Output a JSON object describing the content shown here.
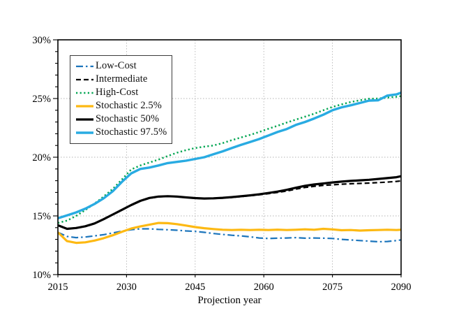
{
  "figure": {
    "background": "#ffffff",
    "frame_color": "#000000"
  },
  "chart_data": {
    "type": "line",
    "title": "",
    "xlabel": "Projection year",
    "ylabel": "",
    "xlim": [
      2015,
      2090
    ],
    "ylim": [
      10,
      30
    ],
    "x_ticks": [
      2015,
      2030,
      2045,
      2060,
      2075,
      2090
    ],
    "y_ticks": [
      {
        "value": 10,
        "label": "10%"
      },
      {
        "value": 15,
        "label": "15%"
      },
      {
        "value": 20,
        "label": "20%"
      },
      {
        "value": 25,
        "label": "25%"
      },
      {
        "value": 30,
        "label": "30%"
      }
    ],
    "y_minor_tick_step": 1,
    "grid": true,
    "grid_color": "#b3b3b3",
    "legend": {
      "position": "upper-left",
      "border_color": "#3c3c3c",
      "background": "#ffffff"
    },
    "x": [
      2015,
      2017,
      2019,
      2021,
      2023,
      2025,
      2027,
      2029,
      2031,
      2033,
      2035,
      2037,
      2039,
      2041,
      2043,
      2045,
      2047,
      2049,
      2051,
      2053,
      2055,
      2057,
      2059,
      2061,
      2063,
      2065,
      2067,
      2069,
      2071,
      2073,
      2075,
      2077,
      2079,
      2081,
      2083,
      2085,
      2087,
      2089,
      2090
    ],
    "series": [
      {
        "name": "Low-Cost",
        "color": "#1c75bc",
        "style": "dashdot",
        "width": 2.2,
        "values": [
          13.6,
          13.25,
          13.15,
          13.2,
          13.3,
          13.4,
          13.55,
          13.7,
          13.82,
          13.9,
          13.9,
          13.85,
          13.82,
          13.78,
          13.72,
          13.68,
          13.6,
          13.5,
          13.42,
          13.35,
          13.3,
          13.22,
          13.12,
          13.08,
          13.1,
          13.12,
          13.15,
          13.1,
          13.12,
          13.1,
          13.08,
          13.0,
          12.95,
          12.9,
          12.85,
          12.8,
          12.82,
          12.9,
          12.95
        ]
      },
      {
        "name": "Intermediate",
        "color": "#000000",
        "style": "dashed",
        "width": 2.2,
        "values": [
          14.2,
          13.92,
          13.98,
          14.12,
          14.35,
          14.7,
          15.1,
          15.5,
          15.9,
          16.25,
          16.5,
          16.62,
          16.66,
          16.63,
          16.57,
          16.5,
          16.47,
          16.48,
          16.52,
          16.57,
          16.64,
          16.72,
          16.8,
          16.9,
          17.0,
          17.12,
          17.28,
          17.42,
          17.52,
          17.6,
          17.65,
          17.7,
          17.74,
          17.77,
          17.8,
          17.84,
          17.88,
          17.94,
          17.98
        ]
      },
      {
        "name": "High-Cost",
        "color": "#00a551",
        "style": "dotted",
        "width": 2.5,
        "values": [
          14.4,
          14.6,
          15.0,
          15.5,
          16.05,
          16.65,
          17.3,
          18.1,
          18.95,
          19.3,
          19.55,
          19.8,
          20.1,
          20.38,
          20.6,
          20.78,
          20.9,
          21.0,
          21.2,
          21.45,
          21.68,
          21.9,
          22.15,
          22.42,
          22.68,
          22.95,
          23.2,
          23.45,
          23.7,
          24.0,
          24.28,
          24.5,
          24.7,
          24.85,
          24.98,
          25.0,
          25.08,
          25.15,
          25.2
        ]
      },
      {
        "name": "Stochastic 2.5%",
        "color": "#fdb913",
        "style": "solid",
        "width": 3.2,
        "values": [
          13.6,
          12.85,
          12.7,
          12.75,
          12.9,
          13.1,
          13.35,
          13.65,
          13.92,
          14.1,
          14.25,
          14.4,
          14.38,
          14.3,
          14.18,
          14.05,
          13.95,
          13.88,
          13.82,
          13.8,
          13.82,
          13.8,
          13.82,
          13.8,
          13.83,
          13.8,
          13.82,
          13.86,
          13.82,
          13.9,
          13.85,
          13.78,
          13.8,
          13.75,
          13.78,
          13.8,
          13.82,
          13.8,
          13.82
        ]
      },
      {
        "name": "Stochastic 50%",
        "color": "#000000",
        "style": "solid",
        "width": 3.2,
        "values": [
          14.2,
          13.9,
          13.97,
          14.12,
          14.36,
          14.72,
          15.12,
          15.52,
          15.92,
          16.28,
          16.53,
          16.65,
          16.68,
          16.65,
          16.58,
          16.52,
          16.48,
          16.5,
          16.54,
          16.6,
          16.67,
          16.75,
          16.84,
          16.95,
          17.07,
          17.22,
          17.4,
          17.56,
          17.68,
          17.76,
          17.85,
          17.92,
          17.98,
          18.03,
          18.08,
          18.15,
          18.22,
          18.3,
          18.38
        ]
      },
      {
        "name": "Stochastic 97.5%",
        "color": "#29abe2",
        "style": "solid",
        "width": 3.4,
        "values": [
          14.8,
          15.05,
          15.3,
          15.62,
          16.02,
          16.5,
          17.1,
          17.9,
          18.62,
          19.0,
          19.12,
          19.3,
          19.5,
          19.6,
          19.7,
          19.85,
          20.0,
          20.25,
          20.5,
          20.78,
          21.05,
          21.3,
          21.55,
          21.85,
          22.15,
          22.4,
          22.75,
          23.0,
          23.3,
          23.62,
          24.0,
          24.25,
          24.42,
          24.62,
          24.82,
          24.85,
          25.25,
          25.35,
          25.5
        ]
      }
    ]
  }
}
